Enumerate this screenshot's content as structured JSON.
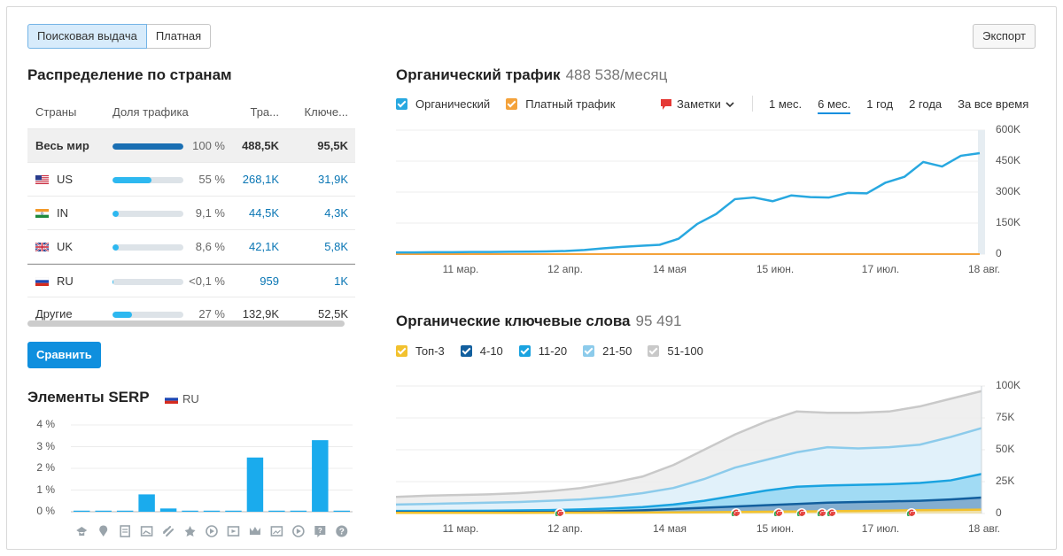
{
  "tabs": [
    {
      "label": "Поисковая выдача",
      "active": true
    },
    {
      "label": "Платная",
      "active": false
    }
  ],
  "export_label": "Экспорт",
  "countries": {
    "title": "Распределение по странам",
    "headers": {
      "country": "Страны",
      "share": "Доля трафика",
      "traffic": "Тра...",
      "keywords": "Ключе..."
    },
    "rows": [
      {
        "name": "Весь мир",
        "flag": "",
        "share": 100,
        "pct": "100 %",
        "traffic": "488,5K",
        "keywords": "95,5K"
      },
      {
        "name": "US",
        "flag": "us",
        "share": 55,
        "pct": "55 %",
        "traffic": "268,1K",
        "keywords": "31,9K"
      },
      {
        "name": "IN",
        "flag": "in",
        "share": 9.1,
        "pct": "9,1 %",
        "traffic": "44,5K",
        "keywords": "4,3K"
      },
      {
        "name": "UK",
        "flag": "uk",
        "share": 8.6,
        "pct": "8,6 %",
        "traffic": "42,1K",
        "keywords": "5,8K"
      },
      {
        "name": "RU",
        "flag": "ru",
        "share": 0.05,
        "pct": "<0,1 %",
        "traffic": "959",
        "keywords": "1K"
      },
      {
        "name": "Другие",
        "flag": "",
        "share": 27,
        "pct": "27 %",
        "traffic": "132,9K",
        "keywords": "52,5K"
      }
    ],
    "compare_label": "Сравнить"
  },
  "serp": {
    "title": "Элементы SERP",
    "region": "RU",
    "y_ticks": [
      "4 %",
      "3 %",
      "2 %",
      "1 %",
      "0 %"
    ],
    "values": [
      0.05,
      0.05,
      0.05,
      0.8,
      0.15,
      0.05,
      0.05,
      0.05,
      2.5,
      0.05,
      0.05,
      3.3,
      0.05
    ],
    "icons": [
      "graduation-cap-icon",
      "map-pin-icon",
      "document-icon",
      "image-icon",
      "link-icon",
      "star-icon",
      "play-icon",
      "video-icon",
      "crown-icon",
      "photo-icon",
      "play-circle-icon",
      "question-box-icon",
      "question-icon"
    ]
  },
  "traffic": {
    "title": "Органический трафик",
    "value": "488 538",
    "unit": "/месяц",
    "legend": [
      {
        "label": "Органический",
        "color": "#28a8e0"
      },
      {
        "label": "Платный трафик",
        "color": "#f4a23a"
      }
    ],
    "notes_label": "Заметки",
    "periods": [
      {
        "label": "1 мес.",
        "active": false
      },
      {
        "label": "6 мес.",
        "active": true
      },
      {
        "label": "1 год",
        "active": false
      },
      {
        "label": "2 года",
        "active": false
      },
      {
        "label": "За все время",
        "active": false
      }
    ],
    "y_ticks": [
      "600K",
      "450K",
      "300K",
      "150K",
      "0"
    ],
    "x_ticks": [
      "11 мар.",
      "12 апр.",
      "14 мая",
      "15 июн.",
      "17 июл.",
      "18 авг."
    ]
  },
  "keywords": {
    "title": "Органические ключевые слова",
    "value": "95 491",
    "legend": [
      {
        "label": "Топ-3",
        "color": "#f2c12e"
      },
      {
        "label": "4-10",
        "color": "#125f9e"
      },
      {
        "label": "11-20",
        "color": "#1aa3e0"
      },
      {
        "label": "21-50",
        "color": "#8ccbeb"
      },
      {
        "label": "51-100",
        "color": "#c9c9c9"
      }
    ],
    "y_ticks": [
      "100K",
      "75K",
      "50K",
      "25K",
      "0"
    ],
    "x_ticks": [
      "11 мар.",
      "12 апр.",
      "14 мая",
      "15 июн.",
      "17 июл.",
      "18 авг."
    ]
  },
  "chart_data": [
    {
      "type": "line",
      "title": "Органический трафик",
      "ylim": [
        0,
        600000
      ],
      "series": [
        {
          "name": "Органический",
          "values": [
            8000,
            8000,
            9000,
            9000,
            10000,
            10000,
            11000,
            12000,
            13000,
            15000,
            20000,
            28000,
            35000,
            40000,
            45000,
            80000,
            140000,
            200000,
            260000,
            280000,
            250000,
            290000,
            270000,
            280000,
            290000,
            300000,
            340000,
            380000,
            440000,
            430000,
            470000,
            488538
          ]
        },
        {
          "name": "Платный трафик",
          "values": [
            0,
            0,
            0,
            0,
            0,
            0,
            0,
            0,
            0,
            0,
            0,
            0,
            0,
            0,
            0,
            0,
            0,
            0,
            0,
            0,
            0,
            0,
            0,
            0,
            0,
            0,
            0,
            0,
            0,
            0,
            0,
            0
          ]
        }
      ]
    },
    {
      "type": "area",
      "title": "Органические ключевые слова",
      "ylim": [
        0,
        100000
      ],
      "series": [
        {
          "name": "Топ-3",
          "values": [
            500,
            500,
            500,
            500,
            500,
            600,
            600,
            700,
            800,
            900,
            1000,
            1200,
            1400,
            1600,
            1800,
            2000,
            2300,
            2600,
            2800,
            3000
          ]
        },
        {
          "name": "4-10",
          "values": [
            1000,
            1000,
            1000,
            1000,
            1100,
            1200,
            1400,
            1800,
            2500,
            3500,
            4500,
            5500,
            6500,
            7500,
            8500,
            9000,
            9500,
            10000,
            11000,
            12500
          ]
        },
        {
          "name": "11-20",
          "values": [
            2000,
            2000,
            2100,
            2200,
            2400,
            2700,
            3200,
            4000,
            5000,
            7000,
            10000,
            14000,
            18000,
            21000,
            22000,
            22500,
            23000,
            24000,
            26000,
            31000
          ]
        },
        {
          "name": "21-50",
          "values": [
            7000,
            7500,
            8000,
            8500,
            9000,
            10000,
            11000,
            13000,
            16000,
            20000,
            27000,
            36000,
            42000,
            48000,
            52000,
            51000,
            52000,
            54000,
            60000,
            67000
          ]
        },
        {
          "name": "51-100",
          "values": [
            13000,
            14000,
            14500,
            15000,
            16000,
            17500,
            20000,
            24000,
            29000,
            38000,
            50000,
            62000,
            72000,
            80000,
            79000,
            79000,
            80000,
            84000,
            90000,
            96000
          ]
        }
      ]
    }
  ]
}
